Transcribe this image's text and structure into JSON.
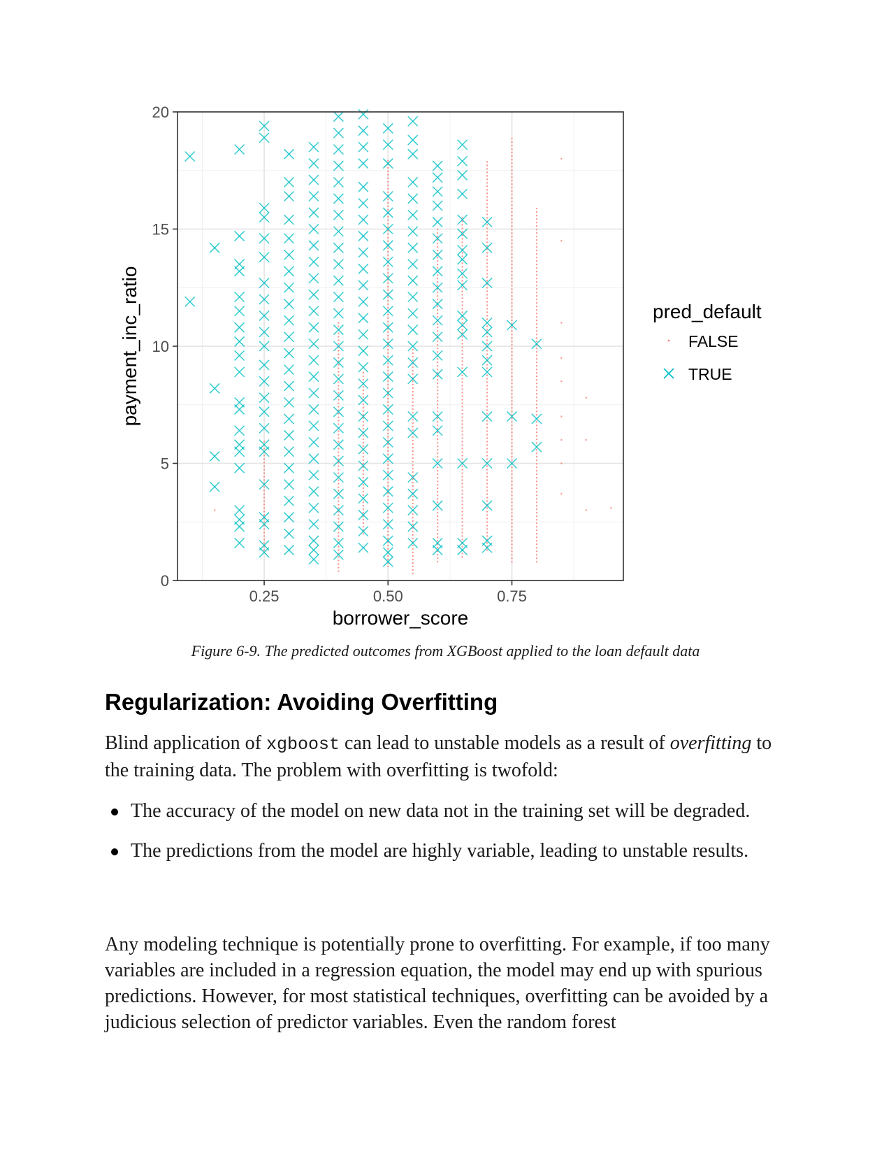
{
  "chart_data": {
    "type": "scatter",
    "title": "",
    "xlabel": "borrower_score",
    "ylabel": "payment_inc_ratio",
    "xlim": [
      0.075,
      0.975
    ],
    "ylim": [
      0,
      20
    ],
    "x_ticks": [
      0.25,
      0.5,
      0.75
    ],
    "x_tick_labels": [
      "0.25",
      "0.50",
      "0.75"
    ],
    "y_ticks": [
      0,
      5,
      10,
      15,
      20
    ],
    "y_tick_labels": [
      "0",
      "5",
      "10",
      "15",
      "20"
    ],
    "grid": true,
    "legend": {
      "title": "pred_default",
      "placement": "right",
      "entries": [
        {
          "label": "FALSE",
          "marker": "dot",
          "color": "#F8766D"
        },
        {
          "label": "TRUE",
          "marker": "x",
          "color": "#00BFC4"
        }
      ]
    },
    "series": [
      {
        "name": "TRUE",
        "marker": "x",
        "color": "#00BFC4",
        "points": [
          [
            0.1,
            18.1
          ],
          [
            0.1,
            11.9
          ],
          [
            0.15,
            14.2
          ],
          [
            0.15,
            8.2
          ],
          [
            0.15,
            5.3
          ],
          [
            0.15,
            4.0
          ],
          [
            0.2,
            18.4
          ],
          [
            0.2,
            14.7
          ],
          [
            0.2,
            13.5
          ],
          [
            0.2,
            13.2
          ],
          [
            0.2,
            12.1
          ],
          [
            0.2,
            11.5
          ],
          [
            0.2,
            10.8
          ],
          [
            0.2,
            10.2
          ],
          [
            0.2,
            9.6
          ],
          [
            0.2,
            8.9
          ],
          [
            0.2,
            7.6
          ],
          [
            0.2,
            7.3
          ],
          [
            0.2,
            6.4
          ],
          [
            0.2,
            5.8
          ],
          [
            0.2,
            5.5
          ],
          [
            0.2,
            4.8
          ],
          [
            0.2,
            3.0
          ],
          [
            0.2,
            2.6
          ],
          [
            0.2,
            2.3
          ],
          [
            0.2,
            1.6
          ],
          [
            0.25,
            19.4
          ],
          [
            0.25,
            18.9
          ],
          [
            0.25,
            15.9
          ],
          [
            0.25,
            15.5
          ],
          [
            0.25,
            14.6
          ],
          [
            0.25,
            13.8
          ],
          [
            0.25,
            12.7
          ],
          [
            0.25,
            12.0
          ],
          [
            0.25,
            11.3
          ],
          [
            0.25,
            10.6
          ],
          [
            0.25,
            10.0
          ],
          [
            0.25,
            9.2
          ],
          [
            0.25,
            8.5
          ],
          [
            0.25,
            7.8
          ],
          [
            0.25,
            7.2
          ],
          [
            0.25,
            6.5
          ],
          [
            0.25,
            5.8
          ],
          [
            0.25,
            5.5
          ],
          [
            0.25,
            4.1
          ],
          [
            0.25,
            2.7
          ],
          [
            0.25,
            2.4
          ],
          [
            0.25,
            1.5
          ],
          [
            0.25,
            1.2
          ],
          [
            0.3,
            18.2
          ],
          [
            0.3,
            17.0
          ],
          [
            0.3,
            16.4
          ],
          [
            0.3,
            15.4
          ],
          [
            0.3,
            14.6
          ],
          [
            0.3,
            13.9
          ],
          [
            0.3,
            13.2
          ],
          [
            0.3,
            12.5
          ],
          [
            0.3,
            11.8
          ],
          [
            0.3,
            11.1
          ],
          [
            0.3,
            10.4
          ],
          [
            0.3,
            9.7
          ],
          [
            0.3,
            9.0
          ],
          [
            0.3,
            8.3
          ],
          [
            0.3,
            7.6
          ],
          [
            0.3,
            6.9
          ],
          [
            0.3,
            6.2
          ],
          [
            0.3,
            5.5
          ],
          [
            0.3,
            4.8
          ],
          [
            0.3,
            4.1
          ],
          [
            0.3,
            3.4
          ],
          [
            0.3,
            2.7
          ],
          [
            0.3,
            2.0
          ],
          [
            0.3,
            1.3
          ],
          [
            0.35,
            18.5
          ],
          [
            0.35,
            17.8
          ],
          [
            0.35,
            17.1
          ],
          [
            0.35,
            16.4
          ],
          [
            0.35,
            15.7
          ],
          [
            0.35,
            15.0
          ],
          [
            0.35,
            14.3
          ],
          [
            0.35,
            13.6
          ],
          [
            0.35,
            12.9
          ],
          [
            0.35,
            12.2
          ],
          [
            0.35,
            11.5
          ],
          [
            0.35,
            10.8
          ],
          [
            0.35,
            10.1
          ],
          [
            0.35,
            9.4
          ],
          [
            0.35,
            8.7
          ],
          [
            0.35,
            8.0
          ],
          [
            0.35,
            7.3
          ],
          [
            0.35,
            6.6
          ],
          [
            0.35,
            5.9
          ],
          [
            0.35,
            5.2
          ],
          [
            0.35,
            4.5
          ],
          [
            0.35,
            3.8
          ],
          [
            0.35,
            3.1
          ],
          [
            0.35,
            2.4
          ],
          [
            0.35,
            1.7
          ],
          [
            0.35,
            1.3
          ],
          [
            0.35,
            0.9
          ],
          [
            0.4,
            19.8
          ],
          [
            0.4,
            19.1
          ],
          [
            0.4,
            18.4
          ],
          [
            0.4,
            17.7
          ],
          [
            0.4,
            17.0
          ],
          [
            0.4,
            16.3
          ],
          [
            0.4,
            15.6
          ],
          [
            0.4,
            14.9
          ],
          [
            0.4,
            14.2
          ],
          [
            0.4,
            13.5
          ],
          [
            0.4,
            12.8
          ],
          [
            0.4,
            12.1
          ],
          [
            0.4,
            11.4
          ],
          [
            0.4,
            10.7
          ],
          [
            0.4,
            10.0
          ],
          [
            0.4,
            9.3
          ],
          [
            0.4,
            8.6
          ],
          [
            0.4,
            7.9
          ],
          [
            0.4,
            7.2
          ],
          [
            0.4,
            6.5
          ],
          [
            0.4,
            5.8
          ],
          [
            0.4,
            5.1
          ],
          [
            0.4,
            4.4
          ],
          [
            0.4,
            3.7
          ],
          [
            0.4,
            3.0
          ],
          [
            0.4,
            2.3
          ],
          [
            0.4,
            1.6
          ],
          [
            0.4,
            1.1
          ],
          [
            0.45,
            19.9
          ],
          [
            0.45,
            19.2
          ],
          [
            0.45,
            18.5
          ],
          [
            0.45,
            17.8
          ],
          [
            0.45,
            16.8
          ],
          [
            0.45,
            16.1
          ],
          [
            0.45,
            15.4
          ],
          [
            0.45,
            14.7
          ],
          [
            0.45,
            14.0
          ],
          [
            0.45,
            13.3
          ],
          [
            0.45,
            12.6
          ],
          [
            0.45,
            11.9
          ],
          [
            0.45,
            11.2
          ],
          [
            0.45,
            10.5
          ],
          [
            0.45,
            9.8
          ],
          [
            0.45,
            9.1
          ],
          [
            0.45,
            8.4
          ],
          [
            0.45,
            7.7
          ],
          [
            0.45,
            7.0
          ],
          [
            0.45,
            6.3
          ],
          [
            0.45,
            5.6
          ],
          [
            0.45,
            4.9
          ],
          [
            0.45,
            4.2
          ],
          [
            0.45,
            3.5
          ],
          [
            0.45,
            2.8
          ],
          [
            0.45,
            2.1
          ],
          [
            0.45,
            1.4
          ],
          [
            0.5,
            19.3
          ],
          [
            0.5,
            18.6
          ],
          [
            0.5,
            17.8
          ],
          [
            0.5,
            16.4
          ],
          [
            0.5,
            15.7
          ],
          [
            0.5,
            15.0
          ],
          [
            0.5,
            14.3
          ],
          [
            0.5,
            13.6
          ],
          [
            0.5,
            12.9
          ],
          [
            0.5,
            12.2
          ],
          [
            0.5,
            11.5
          ],
          [
            0.5,
            10.8
          ],
          [
            0.5,
            10.1
          ],
          [
            0.5,
            9.4
          ],
          [
            0.5,
            8.7
          ],
          [
            0.5,
            8.0
          ],
          [
            0.5,
            7.3
          ],
          [
            0.5,
            6.6
          ],
          [
            0.5,
            5.9
          ],
          [
            0.5,
            5.2
          ],
          [
            0.5,
            4.5
          ],
          [
            0.5,
            3.8
          ],
          [
            0.5,
            3.1
          ],
          [
            0.5,
            2.4
          ],
          [
            0.5,
            1.7
          ],
          [
            0.5,
            1.2
          ],
          [
            0.5,
            0.8
          ],
          [
            0.55,
            19.6
          ],
          [
            0.55,
            18.8
          ],
          [
            0.55,
            18.2
          ],
          [
            0.55,
            17.0
          ],
          [
            0.55,
            16.3
          ],
          [
            0.55,
            15.6
          ],
          [
            0.55,
            14.9
          ],
          [
            0.55,
            14.2
          ],
          [
            0.55,
            13.5
          ],
          [
            0.55,
            12.8
          ],
          [
            0.55,
            12.1
          ],
          [
            0.55,
            11.4
          ],
          [
            0.55,
            10.7
          ],
          [
            0.55,
            10.0
          ],
          [
            0.55,
            9.3
          ],
          [
            0.55,
            8.6
          ],
          [
            0.55,
            7.0
          ],
          [
            0.55,
            6.3
          ],
          [
            0.55,
            4.4
          ],
          [
            0.55,
            3.7
          ],
          [
            0.55,
            3.0
          ],
          [
            0.55,
            2.3
          ],
          [
            0.55,
            1.6
          ],
          [
            0.6,
            17.7
          ],
          [
            0.6,
            17.2
          ],
          [
            0.6,
            16.6
          ],
          [
            0.6,
            16.0
          ],
          [
            0.6,
            15.3
          ],
          [
            0.6,
            14.6
          ],
          [
            0.6,
            13.9
          ],
          [
            0.6,
            13.2
          ],
          [
            0.6,
            12.5
          ],
          [
            0.6,
            11.8
          ],
          [
            0.6,
            11.1
          ],
          [
            0.6,
            10.4
          ],
          [
            0.6,
            9.6
          ],
          [
            0.6,
            8.8
          ],
          [
            0.6,
            7.0
          ],
          [
            0.6,
            6.4
          ],
          [
            0.6,
            5.0
          ],
          [
            0.6,
            3.2
          ],
          [
            0.6,
            1.6
          ],
          [
            0.6,
            1.3
          ],
          [
            0.65,
            18.6
          ],
          [
            0.65,
            17.9
          ],
          [
            0.65,
            17.3
          ],
          [
            0.65,
            16.5
          ],
          [
            0.65,
            15.4
          ],
          [
            0.65,
            14.8
          ],
          [
            0.65,
            14.1
          ],
          [
            0.65,
            13.7
          ],
          [
            0.65,
            13.1
          ],
          [
            0.65,
            12.6
          ],
          [
            0.65,
            11.3
          ],
          [
            0.65,
            10.9
          ],
          [
            0.65,
            10.5
          ],
          [
            0.65,
            8.9
          ],
          [
            0.65,
            5.0
          ],
          [
            0.65,
            1.6
          ],
          [
            0.65,
            1.3
          ],
          [
            0.7,
            15.3
          ],
          [
            0.7,
            14.2
          ],
          [
            0.7,
            12.7
          ],
          [
            0.7,
            11.0
          ],
          [
            0.7,
            10.6
          ],
          [
            0.7,
            10.0
          ],
          [
            0.7,
            9.4
          ],
          [
            0.7,
            8.9
          ],
          [
            0.7,
            7.0
          ],
          [
            0.7,
            5.0
          ],
          [
            0.7,
            3.2
          ],
          [
            0.7,
            1.7
          ],
          [
            0.7,
            1.4
          ],
          [
            0.75,
            10.9
          ],
          [
            0.75,
            7.0
          ],
          [
            0.75,
            5.0
          ],
          [
            0.8,
            10.1
          ],
          [
            0.8,
            6.9
          ],
          [
            0.8,
            5.7
          ]
        ]
      },
      {
        "name": "FALSE",
        "marker": "dot",
        "color": "#F8766D",
        "strips": [
          {
            "x": 0.15,
            "y": [
              3.0,
              3.0
            ]
          },
          {
            "x": 0.25,
            "y": [
              1.3,
              6.0
            ]
          },
          {
            "x": 0.4,
            "y": [
              0.4,
              11.0
            ]
          },
          {
            "x": 0.45,
            "y": [
              2.0,
              9.0
            ]
          },
          {
            "x": 0.5,
            "y": [
              0.6,
              18.0
            ]
          },
          {
            "x": 0.55,
            "y": [
              0.3,
              10.0
            ]
          },
          {
            "x": 0.6,
            "y": [
              0.8,
              15.0
            ]
          },
          {
            "x": 0.65,
            "y": [
              1.0,
              15.5
            ]
          },
          {
            "x": 0.7,
            "y": [
              1.3,
              18.0
            ]
          },
          {
            "x": 0.75,
            "y": [
              0.8,
              19.0
            ]
          },
          {
            "x": 0.8,
            "y": [
              0.8,
              16.0
            ]
          }
        ],
        "points": [
          [
            0.85,
            18.0
          ],
          [
            0.85,
            14.5
          ],
          [
            0.85,
            11.0
          ],
          [
            0.85,
            9.5
          ],
          [
            0.85,
            8.5
          ],
          [
            0.85,
            7.0
          ],
          [
            0.85,
            6.0
          ],
          [
            0.85,
            5.0
          ],
          [
            0.85,
            3.7
          ],
          [
            0.9,
            7.8
          ],
          [
            0.9,
            6.0
          ],
          [
            0.9,
            3.0
          ],
          [
            0.95,
            3.1
          ]
        ]
      }
    ]
  },
  "caption": "Figure 6-9. The predicted outcomes from XGBoost applied to the loan default data",
  "section_heading": "Regularization: Avoiding Overfitting",
  "paragraph_1": {
    "part_1": "Blind application of ",
    "code": "xgboost",
    "part_2": " can lead to unstable models as a result of ",
    "emphasis": "overfitting",
    "part_3": " to the training data. The problem with overfitting is twofold:"
  },
  "bullets": [
    "The accuracy of the model on new data not in the training set will be degraded.",
    "The predictions from the model are highly variable, leading to unstable results."
  ],
  "paragraph_2": "Any modeling technique is potentially prone to overfitting. For example, if too many variables are included in a regression equation, the model may end up with spurious predictions. However, for most statistical techniques, overfitting can be avoided by a judicious selection of predictor variables. Even the random forest"
}
